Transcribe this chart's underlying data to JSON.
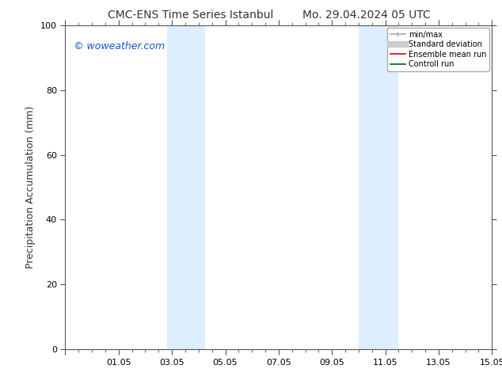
{
  "title_left": "CMC-ENS Time Series Istanbul",
  "title_right": "Mo. 29.04.2024 05 UTC",
  "ylabel": "Precipitation Accumulation (mm)",
  "xlim": [
    0,
    16
  ],
  "ylim": [
    0,
    100
  ],
  "yticks": [
    0,
    20,
    40,
    60,
    80,
    100
  ],
  "xtick_positions": [
    0,
    2,
    4,
    6,
    8,
    10,
    12,
    14,
    16
  ],
  "xtick_labels": [
    "",
    "01.05",
    "03.05",
    "05.05",
    "07.05",
    "09.05",
    "11.05",
    "13.05",
    "15.05"
  ],
  "shaded_bands": [
    {
      "x_start": 3.83,
      "x_end": 4.5,
      "color": "#ddeeff"
    },
    {
      "x_start": 4.5,
      "x_end": 5.25,
      "color": "#ddeeff"
    },
    {
      "x_start": 11.0,
      "x_end": 11.67,
      "color": "#ddeeff"
    },
    {
      "x_start": 11.67,
      "x_end": 12.5,
      "color": "#ddeeff"
    }
  ],
  "watermark": "© woweather.com",
  "watermark_color": "#1155cc",
  "legend_entries": [
    {
      "label": "min/max",
      "color": "#aaaaaa",
      "lw": 1.2
    },
    {
      "label": "Standard deviation",
      "color": "#cccccc",
      "lw": 5
    },
    {
      "label": "Ensemble mean run",
      "color": "#dd0000",
      "lw": 1.2
    },
    {
      "label": "Controll run",
      "color": "#006600",
      "lw": 1.2
    }
  ],
  "bg_color": "#ffffff",
  "title_fontsize": 10,
  "tick_fontsize": 8,
  "ylabel_fontsize": 9
}
